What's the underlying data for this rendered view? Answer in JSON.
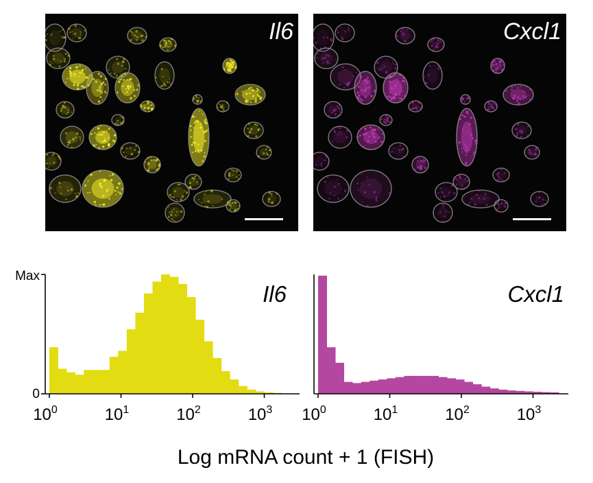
{
  "panels": {
    "left_label": "Il6",
    "right_label": "Cxcl1"
  },
  "colors": {
    "il6": "#e3dc12",
    "cxcl1": "#b4479f",
    "micro_bg": "#050505",
    "il6_stain": "#f1ec2a",
    "cxcl1_stain": "#c43ab8",
    "outline": "#9a9a9a"
  },
  "chart_data": [
    {
      "type": "bar",
      "series_name": "Il6",
      "xlabel": "Log mRNA count + 1 (FISH)",
      "x_scale": "log",
      "x_ticks": [
        {
          "base": "10",
          "exp": "0"
        },
        {
          "base": "10",
          "exp": "1"
        },
        {
          "base": "10",
          "exp": "2"
        },
        {
          "base": "10",
          "exp": "3"
        }
      ],
      "y_ticks": [
        "0",
        "Max"
      ],
      "ylim": [
        0,
        1
      ],
      "bin_edges": [
        0.0,
        0.12,
        0.24,
        0.36,
        0.48,
        0.6,
        0.72,
        0.84,
        0.96,
        1.08,
        1.2,
        1.32,
        1.44,
        1.56,
        1.68,
        1.8,
        1.92,
        2.04,
        2.16,
        2.28,
        2.4,
        2.52,
        2.64,
        2.76,
        2.88,
        3.0,
        3.12,
        3.24
      ],
      "values": [
        0.39,
        0.21,
        0.18,
        0.16,
        0.2,
        0.2,
        0.2,
        0.31,
        0.36,
        0.54,
        0.68,
        0.84,
        0.94,
        1.0,
        0.98,
        0.92,
        0.81,
        0.62,
        0.44,
        0.3,
        0.19,
        0.12,
        0.065,
        0.035,
        0.02,
        0.012,
        0.008
      ]
    },
    {
      "type": "bar",
      "series_name": "Cxcl1",
      "xlabel": "Log mRNA count + 1 (FISH)",
      "x_scale": "log",
      "x_ticks": [
        {
          "base": "10",
          "exp": "0"
        },
        {
          "base": "10",
          "exp": "1"
        },
        {
          "base": "10",
          "exp": "2"
        },
        {
          "base": "10",
          "exp": "3"
        }
      ],
      "y_ticks": [
        "0",
        "Max"
      ],
      "ylim": [
        0,
        1
      ],
      "bin_edges": [
        0.0,
        0.12,
        0.24,
        0.36,
        0.48,
        0.6,
        0.72,
        0.84,
        0.96,
        1.08,
        1.2,
        1.32,
        1.44,
        1.56,
        1.68,
        1.8,
        1.92,
        2.04,
        2.16,
        2.28,
        2.4,
        2.52,
        2.64,
        2.76,
        2.88,
        3.0,
        3.12,
        3.24,
        3.36
      ],
      "values": [
        0.99,
        0.39,
        0.26,
        0.1,
        0.09,
        0.1,
        0.11,
        0.12,
        0.13,
        0.14,
        0.15,
        0.15,
        0.15,
        0.15,
        0.14,
        0.13,
        0.12,
        0.1,
        0.08,
        0.06,
        0.045,
        0.035,
        0.028,
        0.024,
        0.02,
        0.017,
        0.014,
        0.012
      ]
    }
  ]
}
